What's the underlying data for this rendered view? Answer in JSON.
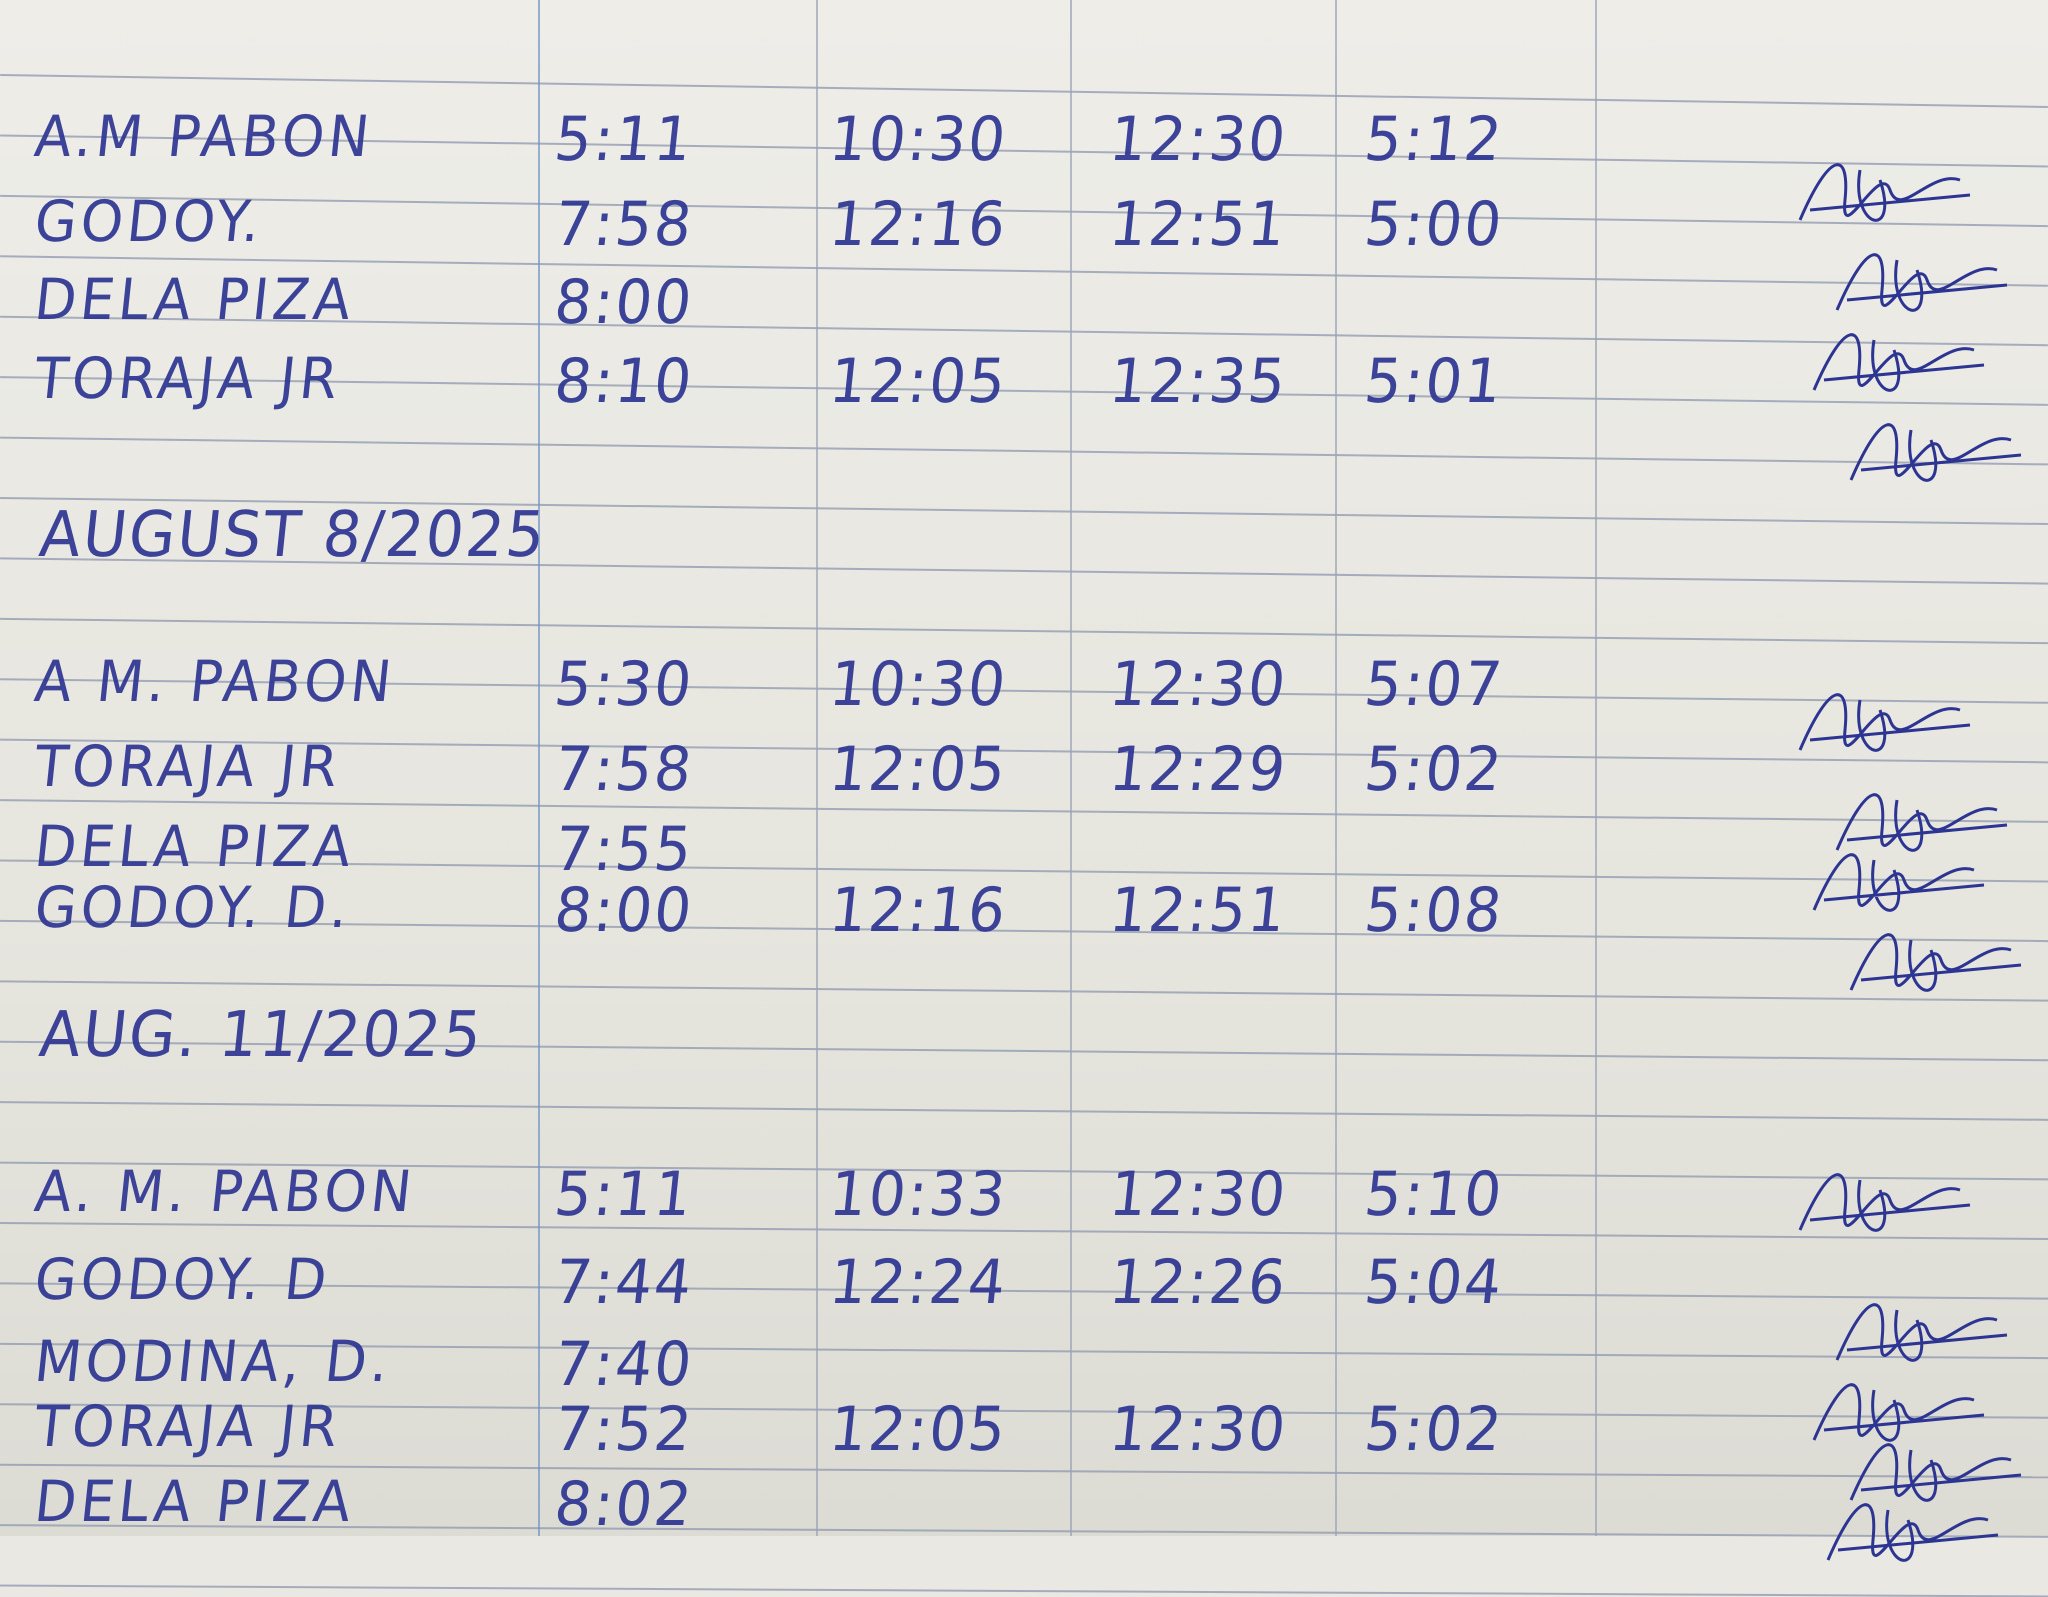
{
  "sections": [
    {
      "date": "",
      "rows": [
        {
          "name": "A.M PABON",
          "times": [
            "5:11",
            "10:30",
            "12:30",
            "5:12"
          ]
        },
        {
          "name": "GODOY.",
          "times": [
            "7:58",
            "12:16",
            "12:51",
            "5:00"
          ]
        },
        {
          "name": "DELA PIZA",
          "times": [
            "8:00",
            "",
            "",
            ""
          ]
        },
        {
          "name": "TORAJA JR",
          "times": [
            "8:10",
            "12:05",
            "12:35",
            "5:01"
          ]
        }
      ]
    },
    {
      "date": "AUGUST 8/2025",
      "rows": [
        {
          "name": "A M. PABON",
          "times": [
            "5:30",
            "10:30",
            "12:30",
            "5:07"
          ]
        },
        {
          "name": "TORAJA JR",
          "times": [
            "7:58",
            "12:05",
            "12:29",
            "5:02"
          ]
        },
        {
          "name": "DELA PIZA",
          "times": [
            "7:55",
            "",
            "",
            ""
          ]
        },
        {
          "name": "GODOY. D.",
          "times": [
            "8:00",
            "12:16",
            "12:51",
            "5:08"
          ]
        }
      ]
    },
    {
      "date": "AUG. 11/2025",
      "rows": [
        {
          "name": "A. M. PABON",
          "times": [
            "5:11",
            "10:33",
            "12:30",
            "5:10"
          ]
        },
        {
          "name": "GODOY. D",
          "times": [
            "7:44",
            "12:24",
            "12:26",
            "5:04"
          ]
        },
        {
          "name": "MODINA, D.",
          "times": [
            "7:40",
            "",
            "",
            ""
          ]
        },
        {
          "name": "TORAJA JR",
          "times": [
            "7:52",
            "12:05",
            "12:30",
            "5:02"
          ]
        },
        {
          "name": "DELA PIZA",
          "times": [
            "8:02",
            "",
            "",
            ""
          ]
        }
      ]
    }
  ],
  "colors": {
    "ink": "#2d3592",
    "paper": "#e9e8e2",
    "rule": "#8d97ad"
  }
}
